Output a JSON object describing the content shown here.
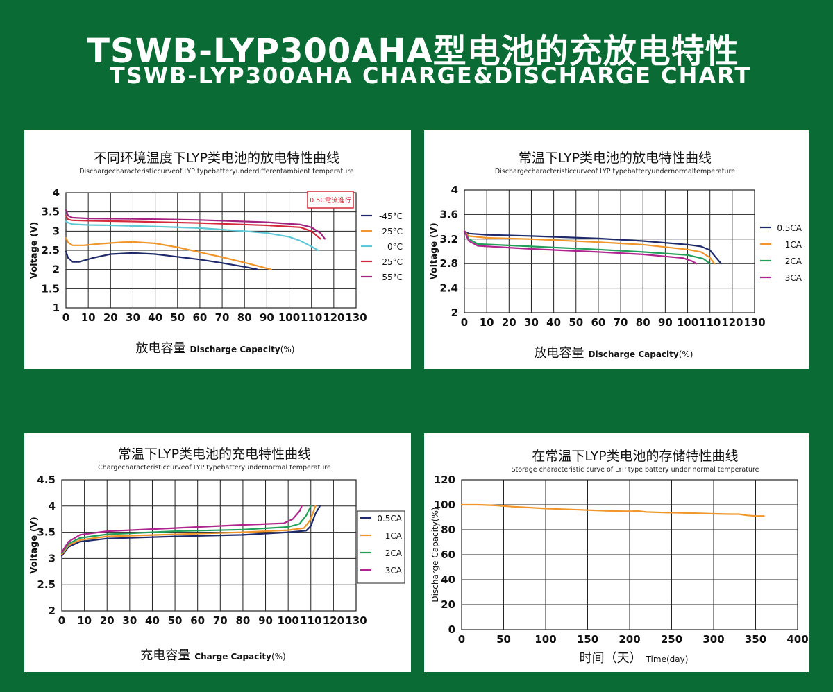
{
  "header": {
    "title_cn": "TSWB-LYP300AHA型电池的充放电特性",
    "title_en": "TSWB-LYP300AHA CHARGE&DISCHARGE  CHART"
  },
  "colors": {
    "background": "#0b6b34",
    "navy": "#1f2a6b",
    "orange": "#f0962a",
    "cyan": "#5ec8d6",
    "red": "#d42a3c",
    "purple": "#a3247e",
    "green": "#22a05a",
    "magenta": "#b0248e"
  },
  "chart_data": [
    {
      "type": "line",
      "title": "不同环境温度下LYP类电池的放电特性曲线",
      "subtitle": "Dischargecharacteristiccurveof LYP typebatteryunderdifferentambient temperature",
      "annotation": "0.5C電流進行",
      "xlabel_cn": "放电容量",
      "xlabel_en": "Discharge Capacity",
      "xlabel_unit": "(%)",
      "ylabel": "Voltage (V)",
      "xlim": [
        0,
        130
      ],
      "ylim": [
        1,
        4
      ],
      "xticks": [
        "0",
        "10",
        "20",
        "30",
        "40",
        "50",
        "60",
        "70",
        "80",
        "90",
        "100",
        "110",
        "120",
        "130"
      ],
      "yticks": [
        "1",
        "1.5",
        "2",
        "2.5",
        "3",
        "3.5",
        "4"
      ],
      "grid": true,
      "legend_position": "right",
      "series": [
        {
          "name": "-45°C",
          "color": "#1f2a6b",
          "x": [
            0,
            1,
            3,
            6,
            12,
            20,
            30,
            40,
            50,
            60,
            70,
            80,
            86
          ],
          "y": [
            2.47,
            2.3,
            2.2,
            2.2,
            2.3,
            2.4,
            2.43,
            2.4,
            2.33,
            2.26,
            2.17,
            2.07,
            2.0
          ]
        },
        {
          "name": "-25°C",
          "color": "#f0962a",
          "x": [
            0,
            1,
            3,
            8,
            15,
            25,
            30,
            40,
            50,
            60,
            70,
            80,
            88,
            92
          ],
          "y": [
            2.82,
            2.7,
            2.63,
            2.63,
            2.67,
            2.71,
            2.72,
            2.68,
            2.58,
            2.45,
            2.32,
            2.18,
            2.06,
            2.0
          ]
        },
        {
          "name": "0°C",
          "color": "#5ec8d6",
          "x": [
            0,
            1,
            3,
            10,
            20,
            40,
            60,
            80,
            90,
            100,
            105,
            110,
            113
          ],
          "y": [
            3.25,
            3.22,
            3.18,
            3.16,
            3.15,
            3.12,
            3.08,
            3.0,
            2.95,
            2.85,
            2.75,
            2.6,
            2.5
          ]
        },
        {
          "name": "25°C",
          "color": "#d42a3c",
          "x": [
            0,
            1,
            3,
            10,
            30,
            60,
            90,
            105,
            110,
            112,
            114
          ],
          "y": [
            3.4,
            3.3,
            3.28,
            3.27,
            3.25,
            3.21,
            3.15,
            3.1,
            3.0,
            2.9,
            2.8
          ]
        },
        {
          "name": "55°C",
          "color": "#a3247e",
          "x": [
            0,
            1,
            3,
            10,
            30,
            60,
            90,
            105,
            110,
            114,
            116
          ],
          "y": [
            3.55,
            3.4,
            3.35,
            3.33,
            3.32,
            3.29,
            3.23,
            3.17,
            3.1,
            2.95,
            2.8
          ]
        }
      ]
    },
    {
      "type": "line",
      "title": "常温下LYP类电池的放电特性曲线",
      "subtitle": "Dischargecharacteristiccurveof LYP typebatteryundernormaltemperature",
      "xlabel_cn": "放电容量",
      "xlabel_en": "Discharge Capacity",
      "xlabel_unit": "(%)",
      "ylabel": "Voltage (V)",
      "xlim": [
        0,
        130
      ],
      "ylim": [
        2,
        4
      ],
      "xticks": [
        "0",
        "10",
        "20",
        "30",
        "40",
        "50",
        "60",
        "70",
        "80",
        "90",
        "100",
        "110",
        "120",
        "130"
      ],
      "yticks": [
        "2",
        "2.4",
        "2.8",
        "3.2",
        "3.6",
        "4"
      ],
      "grid": true,
      "legend_position": "right",
      "series": [
        {
          "name": "0.5CA",
          "color": "#1f2a6b",
          "x": [
            0,
            2,
            10,
            30,
            60,
            80,
            100,
            106,
            110,
            112,
            115
          ],
          "y": [
            3.33,
            3.29,
            3.27,
            3.25,
            3.21,
            3.17,
            3.11,
            3.08,
            3.02,
            2.93,
            2.8
          ]
        },
        {
          "name": "1CA",
          "color": "#f0962a",
          "x": [
            0,
            2,
            10,
            30,
            60,
            80,
            100,
            106,
            110,
            112
          ],
          "y": [
            3.33,
            3.25,
            3.22,
            3.2,
            3.15,
            3.11,
            3.03,
            2.99,
            2.9,
            2.8
          ]
        },
        {
          "name": "2CA",
          "color": "#22a05a",
          "x": [
            0,
            2,
            6,
            30,
            60,
            80,
            100,
            107,
            110
          ],
          "y": [
            3.33,
            3.2,
            3.12,
            3.08,
            3.03,
            2.99,
            2.94,
            2.88,
            2.8
          ]
        },
        {
          "name": "3CA",
          "color": "#b0248e",
          "x": [
            0,
            2,
            6,
            30,
            60,
            80,
            98,
            102,
            104
          ],
          "y": [
            3.33,
            3.17,
            3.09,
            3.04,
            2.99,
            2.95,
            2.89,
            2.84,
            2.8
          ]
        }
      ]
    },
    {
      "type": "line",
      "title": "常温下LYP类电池的充电特性曲线",
      "subtitle": "Chargecharacteristiccurveof LYP typebatteryundernormal temperature",
      "xlabel_cn": "充电容量",
      "xlabel_en": "Charge Capacity",
      "xlabel_unit": "(%)",
      "ylabel": "Voltage (V)",
      "xlim": [
        0,
        130
      ],
      "ylim": [
        2,
        4.5
      ],
      "xticks": [
        "0",
        "10",
        "20",
        "30",
        "40",
        "50",
        "60",
        "70",
        "80",
        "90",
        "100",
        "110",
        "120",
        "130"
      ],
      "yticks": [
        "2",
        "2.5",
        "3",
        "3.5",
        "4",
        "4.5"
      ],
      "grid": true,
      "legend_position": "right",
      "series": [
        {
          "name": "0.5CA",
          "color": "#1f2a6b",
          "x": [
            0,
            3,
            8,
            20,
            50,
            80,
            100,
            108,
            110,
            112,
            114
          ],
          "y": [
            3.05,
            3.22,
            3.32,
            3.38,
            3.42,
            3.45,
            3.5,
            3.53,
            3.62,
            3.85,
            4.0
          ]
        },
        {
          "name": "1CA",
          "color": "#f0962a",
          "x": [
            0,
            3,
            8,
            20,
            50,
            80,
            100,
            107,
            110,
            112
          ],
          "y": [
            3.08,
            3.25,
            3.35,
            3.42,
            3.46,
            3.5,
            3.54,
            3.58,
            3.75,
            4.0
          ]
        },
        {
          "name": "2CA",
          "color": "#22a05a",
          "x": [
            0,
            3,
            8,
            20,
            50,
            80,
            100,
            105,
            108,
            110
          ],
          "y": [
            3.1,
            3.28,
            3.39,
            3.46,
            3.52,
            3.55,
            3.6,
            3.66,
            3.82,
            4.0
          ]
        },
        {
          "name": "3CA",
          "color": "#b0248e",
          "x": [
            0,
            3,
            8,
            20,
            50,
            80,
            98,
            102,
            105,
            106
          ],
          "y": [
            3.12,
            3.32,
            3.45,
            3.52,
            3.58,
            3.64,
            3.67,
            3.75,
            3.9,
            4.0
          ]
        }
      ]
    },
    {
      "type": "line",
      "title": "在常温下LYP类电池的存储特性曲线",
      "subtitle": "Storage characteristic curve of  LYP type battery under normal temperature",
      "xlabel_cn": "时间（天）",
      "xlabel_en": "Time",
      "xlabel_unit": "(day)",
      "ylabel": "Discharge Capacity(%)",
      "xlim": [
        0,
        400
      ],
      "ylim": [
        0,
        120
      ],
      "xticks": [
        "0",
        "50",
        "100",
        "150",
        "200",
        "250",
        "300",
        "350",
        "400"
      ],
      "yticks": [
        "0",
        "20",
        "40",
        "60",
        "80",
        "100",
        "120"
      ],
      "grid": true,
      "legend_position": "none",
      "series": [
        {
          "name": "",
          "color": "#f0962a",
          "x": [
            0,
            20,
            40,
            60,
            80,
            100,
            120,
            140,
            160,
            180,
            200,
            210,
            220,
            240,
            260,
            280,
            300,
            320,
            330,
            340,
            350,
            360
          ],
          "y": [
            100,
            100,
            99.5,
            98.5,
            97.8,
            97,
            96.5,
            96,
            95.5,
            95,
            94.8,
            95,
            94.2,
            93.8,
            93.5,
            93.2,
            92.8,
            92.5,
            92.5,
            91.5,
            91,
            91
          ]
        }
      ]
    }
  ]
}
